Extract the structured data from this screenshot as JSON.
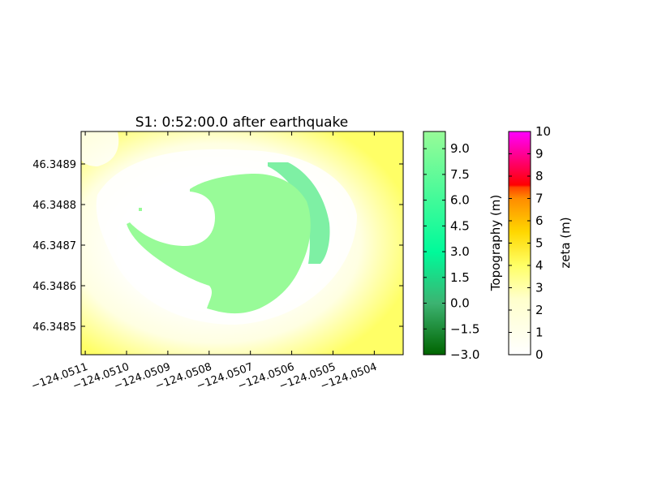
{
  "chart_data": {
    "type": "heatmap",
    "title": "S1: 0:52:00.0 after earthquake",
    "xlabel": "",
    "ylabel": "",
    "x_tick_labels": [
      "−124.0511",
      "−124.0510",
      "−124.0509",
      "−124.0508",
      "−124.0507",
      "−124.0506",
      "−124.0505",
      "−124.0504"
    ],
    "x_ticks": [
      -124.0511,
      -124.051,
      -124.0509,
      -124.0508,
      -124.0507,
      -124.0506,
      -124.0505,
      -124.0504
    ],
    "xlim": [
      -124.05111,
      -124.05033
    ],
    "y_tick_labels": [
      "46.3485",
      "46.3486",
      "46.3487",
      "46.3488",
      "46.3489"
    ],
    "y_ticks": [
      46.3485,
      46.3486,
      46.3487,
      46.3488,
      46.3489
    ],
    "ylim": [
      46.34843,
      46.34898
    ],
    "layers": [
      {
        "name": "Topography",
        "colorbar_label": "Topography (m)",
        "range": [
          -3.0,
          10.0
        ],
        "tick_labels": [
          "−3.0",
          "−1.5",
          "0.0",
          "1.5",
          "3.0",
          "4.5",
          "6.0",
          "7.5",
          "9.0"
        ],
        "ticks": [
          -3.0,
          -1.5,
          0.0,
          1.5,
          3.0,
          4.5,
          6.0,
          7.5,
          9.0
        ],
        "colors": [
          "#006400",
          "#3cb371",
          "#00fa9a",
          "#98fb98"
        ]
      },
      {
        "name": "zeta",
        "colorbar_label": "zeta (m)",
        "range": [
          0,
          10
        ],
        "tick_labels": [
          "0",
          "1",
          "2",
          "3",
          "4",
          "5",
          "6",
          "7",
          "8",
          "9",
          "10"
        ],
        "ticks": [
          0,
          1,
          2,
          3,
          4,
          5,
          6,
          7,
          8,
          9,
          10
        ],
        "colors": [
          "#ffffff",
          "#ffff66",
          "#ffd700",
          "#ff8c00",
          "#ff4500",
          "#ff0000",
          "#ff00ff"
        ]
      }
    ],
    "grid": false,
    "legend": "colorbars-right",
    "colors": {
      "water_field": "#ffff66",
      "shore_white": "#ffffff",
      "land_light": "#98fb98",
      "land_edge": "#7ef0a4"
    }
  }
}
